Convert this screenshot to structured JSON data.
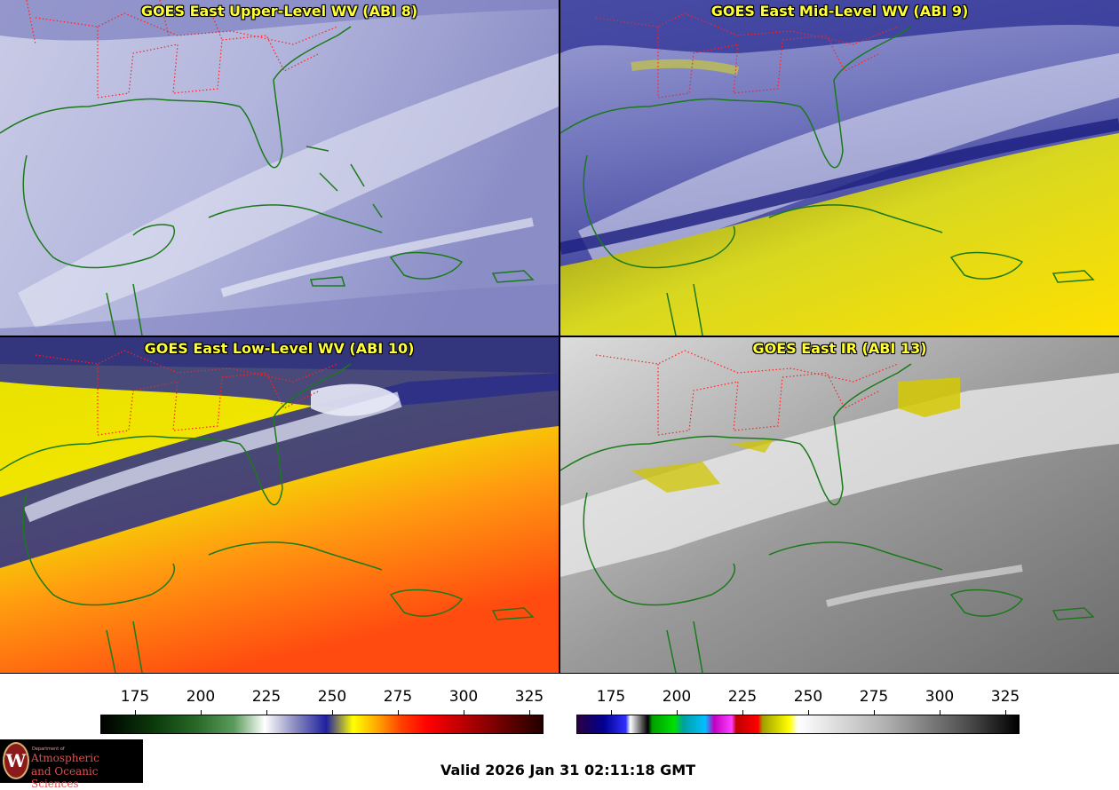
{
  "panels": [
    {
      "title": "GOES East Upper-Level WV (ABI 8)",
      "scheme": "wv_upper"
    },
    {
      "title": "GOES East Mid-Level WV (ABI 9)",
      "scheme": "wv_mid"
    },
    {
      "title": "GOES East Low-Level WV (ABI 10)",
      "scheme": "wv_low"
    },
    {
      "title": "GOES East IR (ABI 13)",
      "scheme": "ir"
    }
  ],
  "colorbars": [
    {
      "name": "water-vapor-colorbar",
      "ticks": [
        "175",
        "200",
        "225",
        "250",
        "275",
        "300",
        "325"
      ]
    },
    {
      "name": "ir-colorbar",
      "ticks": [
        "175",
        "200",
        "225",
        "250",
        "275",
        "300",
        "325"
      ]
    }
  ],
  "logo": {
    "dept": "Department of",
    "line1": "Atmospheric",
    "line2": "and Oceanic Sciences",
    "seal": "W"
  },
  "valid_time": "Valid 2026 Jan 31 02:11:18 GMT",
  "colors": {
    "panel_title": "#ffff33",
    "coastline": "#1a7a1a",
    "state_borders": "#ff2020"
  }
}
